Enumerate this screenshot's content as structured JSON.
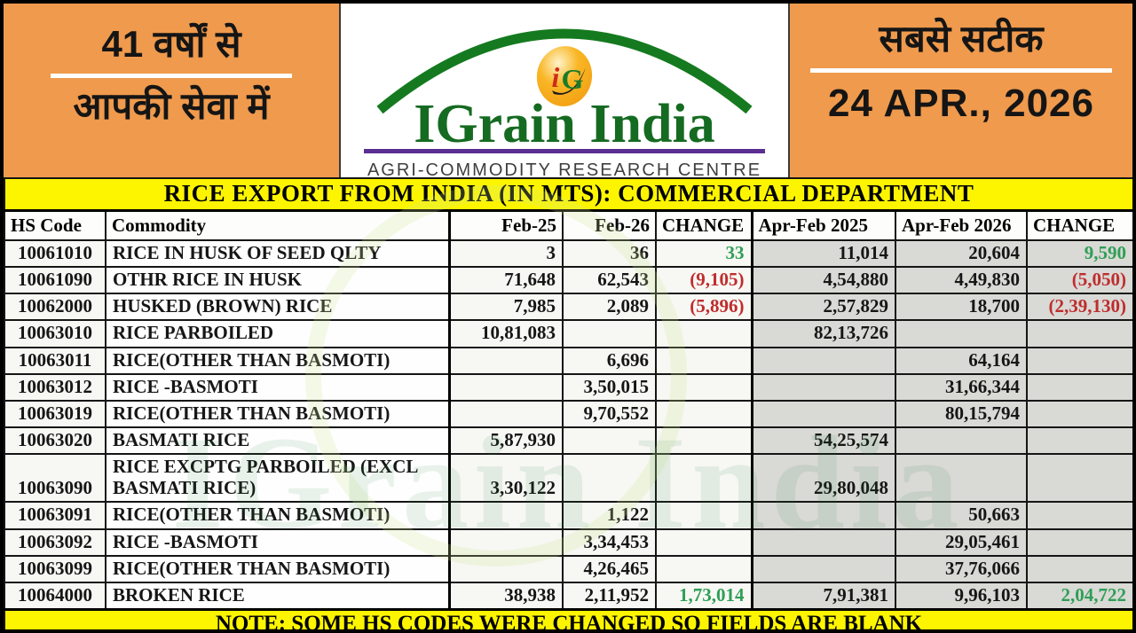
{
  "header": {
    "left_banner": {
      "line1": "41 वर्षों से",
      "line2": "आपकी सेवा में"
    },
    "logo": {
      "brand": "IGrain India",
      "badge_i": "i",
      "badge_g": "G",
      "tagline": "AGRI-COMMODITY RESEARCH CENTRE"
    },
    "right_banner": {
      "tagline": "सबसे सटीक",
      "date": "24 APR., 2026"
    }
  },
  "table": {
    "title": "RICE EXPORT FROM INDIA (IN MTS): COMMERCIAL DEPARTMENT",
    "columns": [
      "HS Code",
      "Commodity",
      "Feb-25",
      "Feb-26",
      "CHANGE",
      "Apr-Feb 2025",
      "Apr-Feb 2026",
      "CHANGE"
    ],
    "rows": [
      [
        "10061010",
        "RICE IN HUSK OF SEED QLTY",
        "3",
        "36",
        "33",
        "11,014",
        "20,604",
        "9,590"
      ],
      [
        "10061090",
        "OTHR RICE IN HUSK",
        "71,648",
        "62,543",
        "(9,105)",
        "4,54,880",
        "4,49,830",
        "(5,050)"
      ],
      [
        "10062000",
        "HUSKED (BROWN) RICE",
        "7,985",
        "2,089",
        "(5,896)",
        "2,57,829",
        "18,700",
        "(2,39,130)"
      ],
      [
        "10063010",
        "RICE PARBOILED",
        "10,81,083",
        "",
        "",
        "82,13,726",
        "",
        ""
      ],
      [
        "10063011",
        "RICE(OTHER THAN BASMOTI)",
        "",
        "6,696",
        "",
        "",
        "64,164",
        ""
      ],
      [
        "10063012",
        "RICE -BASMOTI",
        "",
        "3,50,015",
        "",
        "",
        "31,66,344",
        ""
      ],
      [
        "10063019",
        "RICE(OTHER THAN BASMOTI)",
        "",
        "9,70,552",
        "",
        "",
        "80,15,794",
        ""
      ],
      [
        "10063020",
        "BASMATI RICE",
        "5,87,930",
        "",
        "",
        "54,25,574",
        "",
        ""
      ],
      [
        "10063090",
        "RICE EXCPTG PARBOILED (EXCL BASMATI RICE)",
        "3,30,122",
        "",
        "",
        "29,80,048",
        "",
        ""
      ],
      [
        "10063091",
        "RICE(OTHER THAN BASMOTI)",
        "",
        "1,122",
        "",
        "",
        "50,663",
        ""
      ],
      [
        "10063092",
        "RICE -BASMOTI",
        "",
        "3,34,453",
        "",
        "",
        "29,05,461",
        ""
      ],
      [
        "10063099",
        "RICE(OTHER THAN BASMOTI)",
        "",
        "4,26,465",
        "",
        "",
        "37,76,066",
        ""
      ],
      [
        "10064000",
        "BROKEN RICE",
        "38,938",
        "2,11,952",
        "1,73,014",
        "7,91,381",
        "9,96,103",
        "2,04,722"
      ]
    ],
    "note": "NOTE: SOME HS CODES WERE CHANGED SO FIELDS ARE BLANK"
  },
  "watermark": "IGrain India",
  "colors": {
    "banner_orange": "#ef9a4d",
    "bar_yellow": "#fdf500",
    "positive_green": "#2f9e57",
    "negative_red": "#be2d2d",
    "brand_green": "#156b21",
    "underline_purple": "#5b2f91",
    "shaded_column_gray": "#d9d9d5"
  }
}
